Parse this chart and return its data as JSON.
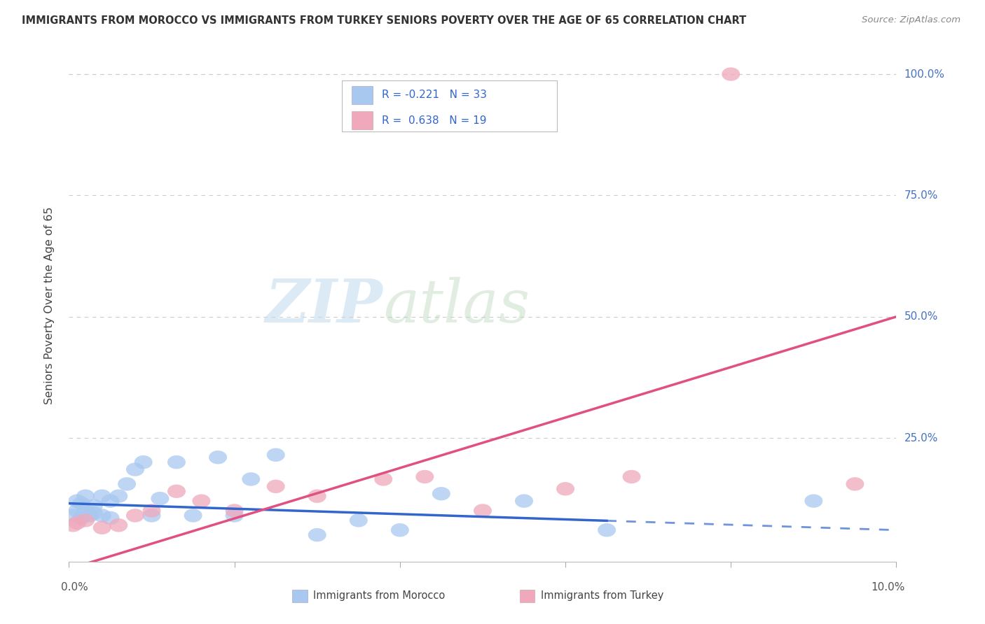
{
  "title": "IMMIGRANTS FROM MOROCCO VS IMMIGRANTS FROM TURKEY SENIORS POVERTY OVER THE AGE OF 65 CORRELATION CHART",
  "source": "Source: ZipAtlas.com",
  "ylabel": "Seniors Poverty Over the Age of 65",
  "morocco_color": "#A8C8F0",
  "turkey_color": "#F0A8BC",
  "morocco_line_color": "#3366CC",
  "turkey_line_color": "#E05080",
  "watermark_zip": "ZIP",
  "watermark_atlas": "atlas",
  "morocco_R": -0.221,
  "morocco_N": 33,
  "turkey_R": 0.638,
  "turkey_N": 19,
  "xlim": [
    0.0,
    0.1
  ],
  "ylim": [
    -0.005,
    1.05
  ],
  "background_color": "#FFFFFF",
  "grid_color": "#CCCCCC",
  "morocco_x": [
    0.0005,
    0.001,
    0.001,
    0.0015,
    0.0015,
    0.002,
    0.002,
    0.0025,
    0.003,
    0.003,
    0.004,
    0.004,
    0.005,
    0.005,
    0.006,
    0.007,
    0.008,
    0.009,
    0.01,
    0.011,
    0.013,
    0.015,
    0.018,
    0.02,
    0.022,
    0.025,
    0.03,
    0.035,
    0.04,
    0.045,
    0.055,
    0.065,
    0.09
  ],
  "morocco_y": [
    0.09,
    0.1,
    0.12,
    0.085,
    0.115,
    0.1,
    0.13,
    0.09,
    0.095,
    0.11,
    0.13,
    0.09,
    0.12,
    0.085,
    0.13,
    0.155,
    0.185,
    0.2,
    0.09,
    0.125,
    0.2,
    0.09,
    0.21,
    0.09,
    0.165,
    0.215,
    0.05,
    0.08,
    0.06,
    0.135,
    0.12,
    0.06,
    0.12
  ],
  "turkey_x": [
    0.0005,
    0.001,
    0.002,
    0.004,
    0.006,
    0.008,
    0.01,
    0.013,
    0.016,
    0.02,
    0.025,
    0.03,
    0.038,
    0.043,
    0.05,
    0.06,
    0.068,
    0.08,
    0.095
  ],
  "turkey_y": [
    0.07,
    0.075,
    0.08,
    0.065,
    0.07,
    0.09,
    0.1,
    0.14,
    0.12,
    0.1,
    0.15,
    0.13,
    0.165,
    0.17,
    0.1,
    0.145,
    0.17,
    1.0,
    0.155
  ],
  "morocco_line_x0": 0.0,
  "morocco_line_x1": 0.1,
  "morocco_line_y0": 0.115,
  "morocco_line_y1": 0.06,
  "morocco_line_solid_x1": 0.065,
  "turkey_line_x0": 0.0,
  "turkey_line_x1": 0.1,
  "turkey_line_y0": -0.02,
  "turkey_line_y1": 0.5
}
